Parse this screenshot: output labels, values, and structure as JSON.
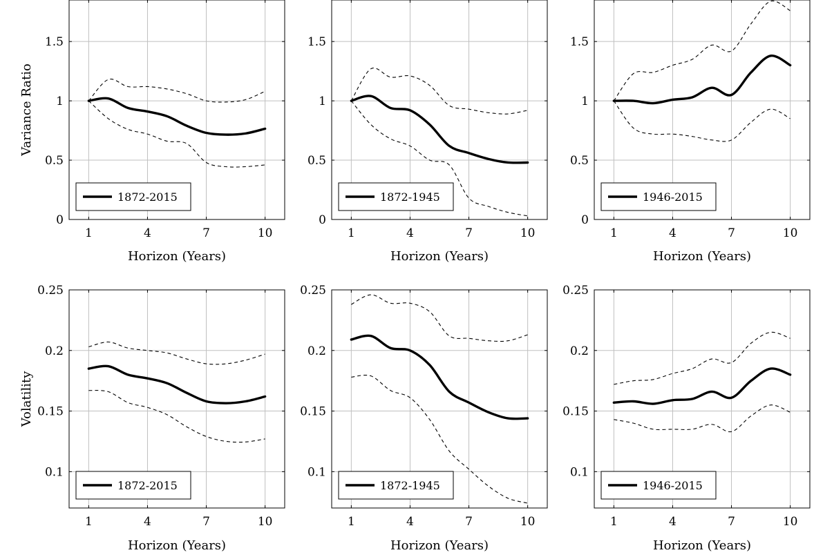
{
  "chart_data": [
    {
      "type": "line",
      "row": 1,
      "col": 1,
      "ylabel": "Variance Ratio",
      "xlabel": "Horizon (Years)",
      "xlim": [
        0,
        11
      ],
      "ylim": [
        0,
        1.85
      ],
      "xticks": [
        1,
        4,
        7,
        10
      ],
      "yticks": [
        0,
        0.5,
        1,
        1.5
      ],
      "xtick_labels": [
        "1",
        "4",
        "7",
        "10"
      ],
      "ytick_labels": [
        "0",
        "0.5",
        "1",
        "1.5"
      ],
      "legend": "bottom-left",
      "x": [
        1,
        2,
        3,
        4,
        5,
        6,
        7,
        8,
        9,
        10
      ],
      "series": [
        {
          "name": "1872-2015",
          "style": "solid",
          "values": [
            1.0,
            1.02,
            0.94,
            0.91,
            0.87,
            0.79,
            0.73,
            0.715,
            0.725,
            0.765
          ]
        },
        {
          "style": "dashed",
          "values": [
            1.0,
            1.18,
            1.12,
            1.12,
            1.1,
            1.06,
            1.0,
            0.99,
            1.01,
            1.08
          ]
        },
        {
          "style": "dashed",
          "values": [
            1.0,
            0.85,
            0.76,
            0.72,
            0.66,
            0.64,
            0.48,
            0.445,
            0.445,
            0.46
          ]
        }
      ]
    },
    {
      "type": "line",
      "row": 1,
      "col": 2,
      "ylabel": "",
      "xlabel": "Horizon (Years)",
      "xlim": [
        0,
        11
      ],
      "ylim": [
        0,
        1.85
      ],
      "xticks": [
        1,
        4,
        7,
        10
      ],
      "yticks": [
        0,
        0.5,
        1,
        1.5
      ],
      "xtick_labels": [
        "1",
        "4",
        "7",
        "10"
      ],
      "ytick_labels": [
        "0",
        "0.5",
        "1",
        "1.5"
      ],
      "legend": "bottom-left",
      "x": [
        1,
        2,
        3,
        4,
        5,
        6,
        7,
        8,
        9,
        10
      ],
      "series": [
        {
          "name": "1872-1945",
          "style": "solid",
          "values": [
            1.0,
            1.04,
            0.94,
            0.92,
            0.8,
            0.62,
            0.56,
            0.51,
            0.48,
            0.48
          ]
        },
        {
          "style": "dashed",
          "values": [
            1.0,
            1.27,
            1.2,
            1.21,
            1.13,
            0.96,
            0.93,
            0.9,
            0.89,
            0.92
          ]
        },
        {
          "style": "dashed",
          "values": [
            1.0,
            0.8,
            0.68,
            0.62,
            0.5,
            0.46,
            0.18,
            0.11,
            0.06,
            0.03
          ]
        }
      ]
    },
    {
      "type": "line",
      "row": 1,
      "col": 3,
      "ylabel": "",
      "xlabel": "Horizon (Years)",
      "xlim": [
        0,
        11
      ],
      "ylim": [
        0,
        1.85
      ],
      "xticks": [
        1,
        4,
        7,
        10
      ],
      "yticks": [
        0,
        0.5,
        1,
        1.5
      ],
      "xtick_labels": [
        "1",
        "4",
        "7",
        "10"
      ],
      "ytick_labels": [
        "0",
        "0.5",
        "1",
        "1.5"
      ],
      "legend": "bottom-left",
      "x": [
        1,
        2,
        3,
        4,
        5,
        6,
        7,
        8,
        9,
        10
      ],
      "series": [
        {
          "name": "1946-2015",
          "style": "solid",
          "values": [
            1.0,
            1.0,
            0.98,
            1.01,
            1.03,
            1.11,
            1.05,
            1.24,
            1.38,
            1.3
          ]
        },
        {
          "style": "dashed",
          "values": [
            1.0,
            1.23,
            1.24,
            1.3,
            1.35,
            1.47,
            1.42,
            1.65,
            1.84,
            1.76
          ]
        },
        {
          "style": "dashed",
          "values": [
            1.0,
            0.77,
            0.72,
            0.72,
            0.7,
            0.67,
            0.67,
            0.82,
            0.93,
            0.85
          ]
        }
      ]
    },
    {
      "type": "line",
      "row": 2,
      "col": 1,
      "ylabel": "Volatility",
      "xlabel": "Horizon (Years)",
      "xlim": [
        0,
        11
      ],
      "ylim": [
        0.07,
        0.25
      ],
      "xticks": [
        1,
        4,
        7,
        10
      ],
      "yticks": [
        0.1,
        0.15,
        0.2,
        0.25
      ],
      "xtick_labels": [
        "1",
        "4",
        "7",
        "10"
      ],
      "ytick_labels": [
        "0.1",
        "0.15",
        "0.2",
        "0.25"
      ],
      "legend": "bottom-left",
      "x": [
        1,
        2,
        3,
        4,
        5,
        6,
        7,
        8,
        9,
        10
      ],
      "series": [
        {
          "name": "1872-2015",
          "style": "solid",
          "values": [
            0.185,
            0.187,
            0.18,
            0.177,
            0.173,
            0.165,
            0.158,
            0.1565,
            0.158,
            0.162
          ]
        },
        {
          "style": "dashed",
          "values": [
            0.203,
            0.207,
            0.202,
            0.2,
            0.198,
            0.193,
            0.189,
            0.189,
            0.192,
            0.197
          ]
        },
        {
          "style": "dashed",
          "values": [
            0.167,
            0.166,
            0.157,
            0.153,
            0.147,
            0.137,
            0.129,
            0.125,
            0.1245,
            0.127
          ]
        }
      ]
    },
    {
      "type": "line",
      "row": 2,
      "col": 2,
      "ylabel": "",
      "xlabel": "Horizon (Years)",
      "xlim": [
        0,
        11
      ],
      "ylim": [
        0.07,
        0.25
      ],
      "xticks": [
        1,
        4,
        7,
        10
      ],
      "yticks": [
        0.1,
        0.15,
        0.2,
        0.25
      ],
      "xtick_labels": [
        "1",
        "4",
        "7",
        "10"
      ],
      "ytick_labels": [
        "0.1",
        "0.15",
        "0.2",
        "0.25"
      ],
      "legend": "bottom-left",
      "x": [
        1,
        2,
        3,
        4,
        5,
        6,
        7,
        8,
        9,
        10
      ],
      "series": [
        {
          "name": "1872-1945",
          "style": "solid",
          "values": [
            0.209,
            0.212,
            0.202,
            0.2,
            0.188,
            0.166,
            0.157,
            0.149,
            0.144,
            0.144
          ]
        },
        {
          "style": "dashed",
          "values": [
            0.238,
            0.246,
            0.239,
            0.239,
            0.232,
            0.212,
            0.21,
            0.208,
            0.208,
            0.213
          ]
        },
        {
          "style": "dashed",
          "values": [
            0.178,
            0.179,
            0.167,
            0.161,
            0.143,
            0.117,
            0.102,
            0.088,
            0.078,
            0.074
          ]
        }
      ]
    },
    {
      "type": "line",
      "row": 2,
      "col": 3,
      "ylabel": "",
      "xlabel": "Horizon (Years)",
      "xlim": [
        0,
        11
      ],
      "ylim": [
        0.07,
        0.25
      ],
      "xticks": [
        1,
        4,
        7,
        10
      ],
      "yticks": [
        0.1,
        0.15,
        0.2,
        0.25
      ],
      "xtick_labels": [
        "1",
        "4",
        "7",
        "10"
      ],
      "ytick_labels": [
        "0.1",
        "0.15",
        "0.2",
        "0.25"
      ],
      "legend": "bottom-left",
      "x": [
        1,
        2,
        3,
        4,
        5,
        6,
        7,
        8,
        9,
        10
      ],
      "series": [
        {
          "name": "1946-2015",
          "style": "solid",
          "values": [
            0.157,
            0.158,
            0.156,
            0.159,
            0.16,
            0.166,
            0.161,
            0.175,
            0.185,
            0.18
          ]
        },
        {
          "style": "dashed",
          "values": [
            0.172,
            0.175,
            0.176,
            0.181,
            0.185,
            0.193,
            0.19,
            0.206,
            0.215,
            0.21
          ]
        },
        {
          "style": "dashed",
          "values": [
            0.143,
            0.14,
            0.135,
            0.135,
            0.135,
            0.139,
            0.133,
            0.146,
            0.155,
            0.149
          ]
        }
      ]
    }
  ]
}
